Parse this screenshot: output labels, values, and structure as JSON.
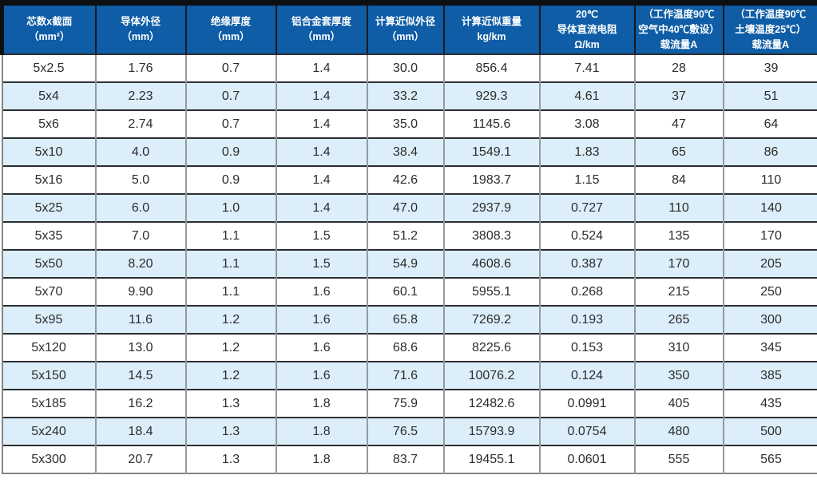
{
  "colors": {
    "header-blue": "#0e5da6",
    "row-alt-blue": "#dceef9",
    "frame-black": "#0d1013"
  },
  "table": {
    "headers": [
      {
        "text": "芯数x截面\n（mm²）"
      },
      {
        "text": "导体外径\n（mm）"
      },
      {
        "text": "绝缘厚度\n（mm）"
      },
      {
        "text": "铝合金套厚度\n（mm）"
      },
      {
        "text": "计算近似外径\n（mm）"
      },
      {
        "text": "计算近似重量\nkg/km"
      },
      {
        "text": "20℃\n导体直流电阻\nΩ/km"
      },
      {
        "text": "（工作温度90℃\n空气中40℃敷设）\n载流量A"
      },
      {
        "text": "（工作温度90℃\n土壤温度25℃）\n载流量A"
      }
    ],
    "rows": [
      [
        "5x2.5",
        "1.76",
        "0.7",
        "1.4",
        "30.0",
        "856.4",
        "7.41",
        "28",
        "39"
      ],
      [
        "5x4",
        "2.23",
        "0.7",
        "1.4",
        "33.2",
        "929.3",
        "4.61",
        "37",
        "51"
      ],
      [
        "5x6",
        "2.74",
        "0.7",
        "1.4",
        "35.0",
        "1145.6",
        "3.08",
        "47",
        "64"
      ],
      [
        "5x10",
        "4.0",
        "0.9",
        "1.4",
        "38.4",
        "1549.1",
        "1.83",
        "65",
        "86"
      ],
      [
        "5x16",
        "5.0",
        "0.9",
        "1.4",
        "42.6",
        "1983.7",
        "1.15",
        "84",
        "110"
      ],
      [
        "5x25",
        "6.0",
        "1.0",
        "1.4",
        "47.0",
        "2937.9",
        "0.727",
        "110",
        "140"
      ],
      [
        "5x35",
        "7.0",
        "1.1",
        "1.5",
        "51.2",
        "3808.3",
        "0.524",
        "135",
        "170"
      ],
      [
        "5x50",
        "8.20",
        "1.1",
        "1.5",
        "54.9",
        "4608.6",
        "0.387",
        "170",
        "205"
      ],
      [
        "5x70",
        "9.90",
        "1.1",
        "1.6",
        "60.1",
        "5955.1",
        "0.268",
        "215",
        "250"
      ],
      [
        "5x95",
        "11.6",
        "1.2",
        "1.6",
        "65.8",
        "7269.2",
        "0.193",
        "265",
        "300"
      ],
      [
        "5x120",
        "13.0",
        "1.2",
        "1.6",
        "68.6",
        "8225.6",
        "0.153",
        "310",
        "345"
      ],
      [
        "5x150",
        "14.5",
        "1.2",
        "1.6",
        "71.6",
        "10076.2",
        "0.124",
        "350",
        "385"
      ],
      [
        "5x185",
        "16.2",
        "1.3",
        "1.8",
        "75.9",
        "12482.6",
        "0.0991",
        "405",
        "435"
      ],
      [
        "5x240",
        "18.4",
        "1.3",
        "1.8",
        "76.5",
        "15793.9",
        "0.0754",
        "480",
        "500"
      ],
      [
        "5x300",
        "20.7",
        "1.3",
        "1.8",
        "83.7",
        "19455.1",
        "0.0601",
        "555",
        "565"
      ]
    ]
  }
}
